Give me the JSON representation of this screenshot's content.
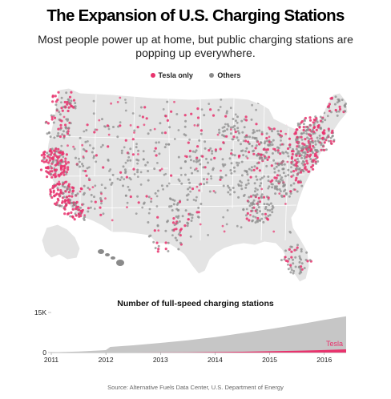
{
  "title": "The Expansion of U.S. Charging Stations",
  "subtitle": "Most people power up at home, but public charging stations are popping up everywhere.",
  "colors": {
    "tesla": "#e8336d",
    "others": "#8c8c8c",
    "land": "#e4e4e4",
    "borders": "#ffffff"
  },
  "legend": {
    "tesla": "Tesla only",
    "others": "Others"
  },
  "chart_data": [
    {
      "type": "scatter",
      "title": "",
      "note": "Map of contiguous U.S. with station dots",
      "series": [
        {
          "name": "Tesla only",
          "color": "#e8336d"
        },
        {
          "name": "Others",
          "color": "#8c8c8c"
        }
      ]
    },
    {
      "type": "area",
      "title": "Number of full-speed charging stations",
      "x": [
        2011.0,
        2011.5,
        2012.0,
        2012.08,
        2012.5,
        2013.0,
        2013.5,
        2014.0,
        2014.5,
        2015.0,
        2015.5,
        2016.0,
        2016.4
      ],
      "series": [
        {
          "name": "",
          "values": [
            100,
            400,
            900,
            2100,
            2700,
            3600,
            4600,
            5800,
            7300,
            8800,
            10400,
            12200,
            13600
          ]
        },
        {
          "name": "Tesla",
          "values": [
            0,
            0,
            0,
            0,
            10,
            40,
            90,
            170,
            300,
            470,
            660,
            940,
            1200
          ]
        }
      ],
      "xlabel": "",
      "ylabel": "",
      "ylim": [
        0,
        15000
      ],
      "ytick_labels": [
        "15K",
        "0"
      ],
      "xtick_labels": [
        "2011",
        "2012",
        "2013",
        "2014",
        "2015",
        "2016"
      ],
      "annotation": "Tesla"
    }
  ],
  "source": "Source: Alternative Fuels Data Center, U.S. Department of Energy"
}
